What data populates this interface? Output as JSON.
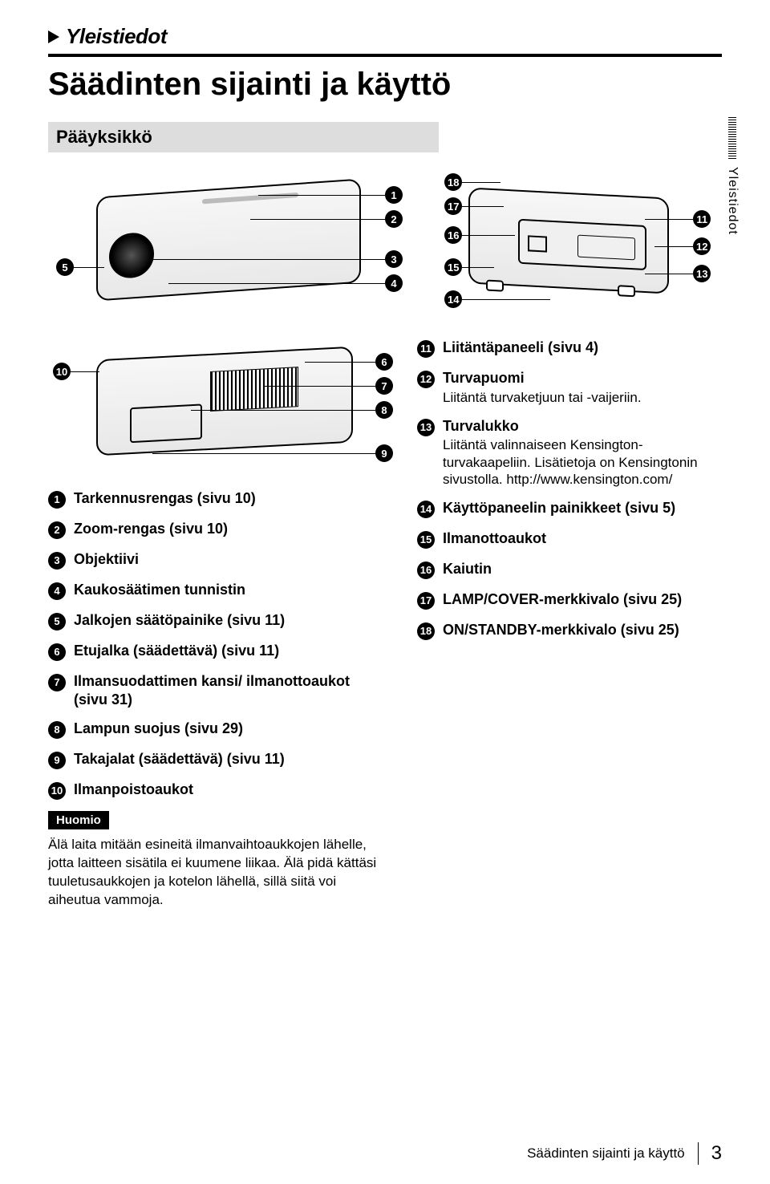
{
  "header_section": "Yleistiedot",
  "page_title": "Säädinten sijainti ja käyttö",
  "subsection_title": "Pääyksikkö",
  "side_tab_label": "Yleistiedot",
  "diagrams": {
    "top_left_callouts": [
      "1",
      "2",
      "3",
      "4",
      "5"
    ],
    "top_right_callouts": [
      "11",
      "12",
      "13",
      "14",
      "15",
      "16",
      "17",
      "18"
    ],
    "bottom_left_callouts": [
      "6",
      "7",
      "8",
      "9",
      "10"
    ]
  },
  "left_items": [
    {
      "n": "1",
      "title": "Tarkennusrengas (sivu 10)"
    },
    {
      "n": "2",
      "title": "Zoom-rengas (sivu 10)"
    },
    {
      "n": "3",
      "title": "Objektiivi"
    },
    {
      "n": "4",
      "title": "Kaukosäätimen tunnistin"
    },
    {
      "n": "5",
      "title": "Jalkojen säätöpainike (sivu 11)"
    },
    {
      "n": "6",
      "title": "Etujalka (säädettävä) (sivu 11)"
    },
    {
      "n": "7",
      "title": "Ilmansuodattimen kansi/ ilmanottoaukot (sivu 31)"
    },
    {
      "n": "8",
      "title": "Lampun suojus (sivu 29)"
    },
    {
      "n": "9",
      "title": "Takajalat (säädettävä) (sivu 11)"
    },
    {
      "n": "10",
      "title": "Ilmanpoistoaukot"
    }
  ],
  "right_items": [
    {
      "n": "11",
      "title": "Liitäntäpaneeli (sivu 4)"
    },
    {
      "n": "12",
      "title": "Turvapuomi",
      "sub": "Liitäntä turvaketjuun tai -vaijeriin."
    },
    {
      "n": "13",
      "title": "Turvalukko",
      "sub": "Liitäntä valinnaiseen Kensington-turvakaapeliin.\nLisätietoja on Kensingtonin sivustolla.\nhttp://www.kensington.com/"
    },
    {
      "n": "14",
      "title": "Käyttöpaneelin painikkeet (sivu 5)"
    },
    {
      "n": "15",
      "title": "Ilmanottoaukot"
    },
    {
      "n": "16",
      "title": "Kaiutin"
    },
    {
      "n": "17",
      "title": "LAMP/COVER-merkkivalo (sivu 25)"
    },
    {
      "n": "18",
      "title": "ON/STANDBY-merkkivalo (sivu 25)"
    }
  ],
  "note": {
    "badge": "Huomio",
    "text": "Älä laita mitään esineitä ilmanvaihtoaukkojen lähelle, jotta laitteen sisätila ei kuumene liikaa. Älä pidä kättäsi tuuletusaukkojen ja kotelon lähellä, sillä siitä voi aiheutua vammoja."
  },
  "footer": {
    "caption": "Säädinten sijainti ja käyttö",
    "page_number": "3"
  }
}
